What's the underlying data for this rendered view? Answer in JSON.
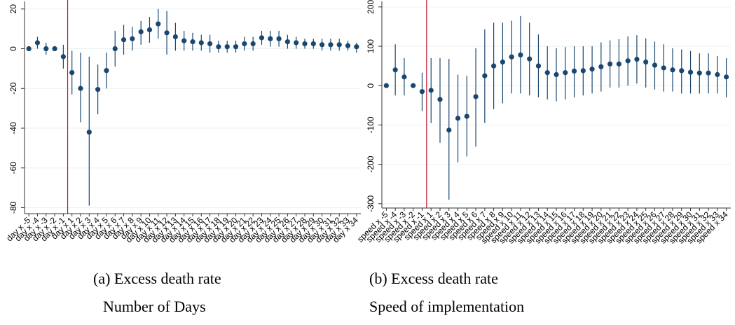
{
  "chart_data": [
    {
      "type": "errorbar",
      "title": "(a) Excess death rate",
      "subtitle": "Number of Days",
      "categories": [
        "day x -5",
        "day x -4",
        "day x -3",
        "day x -2",
        "day x -1",
        "day x 1",
        "day x 2",
        "day x 3",
        "day x 4",
        "day x 5",
        "day x 6",
        "day x 7",
        "day x 8",
        "day x 9",
        "day x 10",
        "day x 11",
        "day x 12",
        "day x 13",
        "day x 14",
        "day x 15",
        "day x 16",
        "day x 17",
        "day x 18",
        "day x 19",
        "day x 20",
        "day x 21",
        "day x 22",
        "day x 23",
        "day x 24",
        "day x 25",
        "day x 26",
        "day x 27",
        "day x 28",
        "day x 29",
        "day x 30",
        "day x 31",
        "day x 32",
        "day x 33",
        "day x 34"
      ],
      "values": [
        0,
        3,
        0,
        0,
        -4,
        -12,
        -20,
        -42,
        -20.5,
        -11,
        0,
        4.5,
        5,
        8.5,
        9.5,
        12.5,
        8,
        6,
        4,
        3.5,
        3,
        2.5,
        1,
        1,
        1,
        2.5,
        2.5,
        5.5,
        5,
        5,
        3.5,
        3,
        2.5,
        2.5,
        2,
        2,
        2,
        1.5,
        1
      ],
      "ci_low": [
        0,
        0,
        -3,
        -1,
        -10,
        -23,
        -37,
        -79,
        -33,
        -20,
        -9,
        -3,
        -1,
        2,
        3,
        5,
        -3,
        -1,
        -1,
        -1,
        -1,
        -2,
        -2,
        -2,
        -2,
        -1,
        -1,
        2,
        1,
        1,
        0,
        0,
        0,
        0,
        -1,
        -1,
        -1,
        -1,
        -2
      ],
      "ci_high": [
        0,
        6,
        3,
        1,
        2,
        -1,
        -2,
        -4,
        -8,
        -2,
        9,
        12,
        11,
        14,
        16,
        20,
        19,
        13,
        9,
        8,
        7,
        7,
        4,
        4,
        4,
        6,
        6,
        9,
        9,
        9,
        7,
        6,
        5,
        5,
        5,
        5,
        5,
        4,
        3
      ],
      "color": "#1a476f",
      "ylim": [
        -83,
        23.8
      ],
      "yticks": [
        -80,
        -60,
        -40,
        -20,
        0,
        20
      ],
      "grid": true,
      "vline": {
        "between": [
          "day x -1",
          "day x 1"
        ],
        "color": "#c8102e"
      }
    },
    {
      "type": "errorbar",
      "title": "(b) Excess death rate",
      "subtitle": "Speed of implementation",
      "categories": [
        "speed x -5",
        "speed x -4",
        "speed x -3",
        "speed x -2",
        "speed x -1",
        "speed x 1",
        "speed x 2",
        "speed x 3",
        "speed x 4",
        "speed x 5",
        "speed x 6",
        "speed x 7",
        "speed x 8",
        "speed x 9",
        "speed x 10",
        "speed x 11",
        "speed x 12",
        "speed x 13",
        "speed x 14",
        "speed x 15",
        "speed x 16",
        "speed x 17",
        "speed x 18",
        "speed x 19",
        "speed x 20",
        "speed x 21",
        "speed x 22",
        "speed x 23",
        "speed x 24",
        "speed x 25",
        "speed x 26",
        "speed x 27",
        "speed x 28",
        "speed x 29",
        "speed x 30",
        "speed x 31",
        "speed x 32",
        "speed x 33",
        "speed x 34"
      ],
      "values": [
        0,
        40,
        22,
        0,
        -15,
        -12,
        -35,
        -113,
        -83,
        -78,
        -28,
        25,
        50,
        60,
        73,
        78,
        68,
        50,
        33,
        28,
        33,
        37,
        38,
        42,
        48,
        55,
        55,
        63,
        67,
        60,
        52,
        45,
        40,
        38,
        34,
        32,
        32,
        28,
        22
      ],
      "ci_low": [
        0,
        -25,
        -25,
        0,
        -65,
        -95,
        -145,
        -290,
        -195,
        -180,
        -155,
        -95,
        -60,
        -45,
        -20,
        -20,
        -25,
        -30,
        -35,
        -40,
        -35,
        -30,
        -25,
        -20,
        -15,
        -5,
        -5,
        0,
        5,
        -5,
        -10,
        -15,
        -15,
        -20,
        -20,
        -20,
        -20,
        -20,
        -30
      ],
      "ci_high": [
        0,
        105,
        70,
        0,
        33,
        70,
        70,
        68,
        28,
        25,
        95,
        143,
        160,
        160,
        165,
        177,
        160,
        130,
        100,
        95,
        98,
        100,
        100,
        100,
        110,
        115,
        118,
        125,
        128,
        120,
        112,
        105,
        95,
        92,
        88,
        82,
        82,
        75,
        70
      ],
      "color": "#1a476f",
      "ylim": [
        -311,
        214
      ],
      "yticks": [
        -300,
        -200,
        -100,
        0,
        100,
        200
      ],
      "grid": true,
      "vline": {
        "between": [
          "speed x -1",
          "speed x 1"
        ],
        "color": "#c8102e"
      }
    }
  ]
}
